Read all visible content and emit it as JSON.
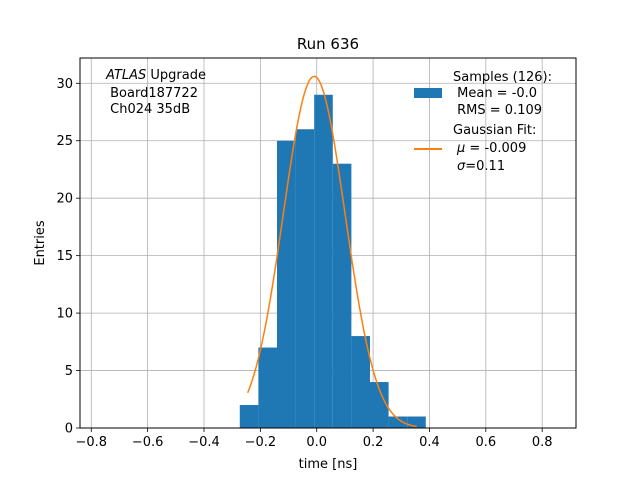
{
  "chart_data": {
    "type": "histogram",
    "title": "Run 636",
    "xlabel": "time [ns]",
    "ylabel": "Entries",
    "xlim": [
      -0.84,
      0.92
    ],
    "ylim": [
      0,
      32.2
    ],
    "grid": true,
    "xticks": [
      -0.8,
      -0.6,
      -0.4,
      -0.2,
      0.0,
      0.2,
      0.4,
      0.6,
      0.8
    ],
    "xtick_labels": [
      "−0.8",
      "−0.6",
      "−0.4",
      "−0.2",
      "0.0",
      "0.2",
      "0.4",
      "0.6",
      "0.8"
    ],
    "yticks": [
      0,
      5,
      10,
      15,
      20,
      25,
      30
    ],
    "ytick_labels": [
      "0",
      "5",
      "10",
      "15",
      "20",
      "25",
      "30"
    ],
    "histogram": {
      "color": "#1f77b4",
      "bins": [
        {
          "lo": -0.273,
          "hi": -0.207,
          "count": 2
        },
        {
          "lo": -0.207,
          "hi": -0.141,
          "count": 7
        },
        {
          "lo": -0.141,
          "hi": -0.075,
          "count": 25
        },
        {
          "lo": -0.075,
          "hi": -0.009,
          "count": 26
        },
        {
          "lo": -0.009,
          "hi": 0.057,
          "count": 29
        },
        {
          "lo": 0.057,
          "hi": 0.123,
          "count": 23
        },
        {
          "lo": 0.123,
          "hi": 0.189,
          "count": 8
        },
        {
          "lo": 0.189,
          "hi": 0.255,
          "count": 4
        },
        {
          "lo": 0.255,
          "hi": 0.321,
          "count": 1
        },
        {
          "lo": 0.321,
          "hi": 0.387,
          "count": 1
        }
      ]
    },
    "fit": {
      "color": "#ff7f0e",
      "amplitude": 30.6,
      "mu": -0.009,
      "sigma": 0.11,
      "x_range": [
        -0.245,
        0.355
      ]
    },
    "annotation": {
      "italic": "ATLAS",
      "rest": " Upgrade",
      "line2": " Board187722",
      "line3": " Ch024 35dB"
    },
    "legend": {
      "position": "top-right",
      "samples": {
        "title": "Samples (126):",
        "mean": " Mean = -0.0",
        "rms": " RMS = 0.109"
      },
      "gauss": {
        "title": "Gaussian Fit:",
        "mu_symbol": "μ",
        "mu_value": " = -0.009",
        "sigma_symbol": "σ",
        "sigma_value": "=0.11"
      }
    }
  }
}
